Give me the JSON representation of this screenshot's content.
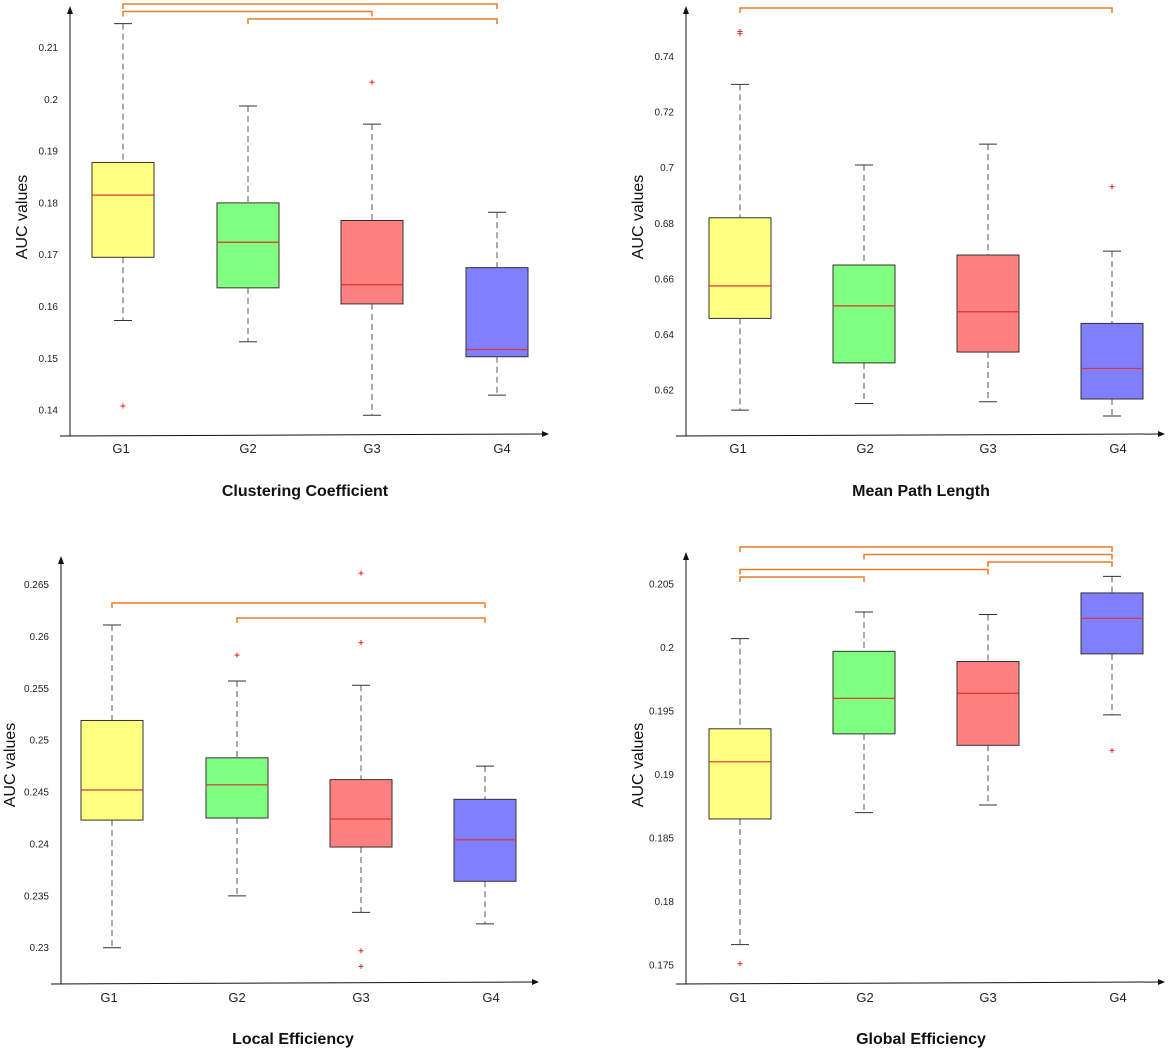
{
  "colors": {
    "groups": [
      "#ffff80",
      "#80ff80",
      "#ff8080",
      "#8080ff"
    ],
    "median": "#dd3333",
    "whisker": "#555555",
    "outlier": "#ee2222",
    "bracket": "#ee7a2a",
    "axis": "#111111"
  },
  "chart_data": [
    {
      "type": "box",
      "title": "Clustering Coefficient",
      "ylabel": "AUC values",
      "categories": [
        "G1",
        "G2",
        "G3",
        "G4"
      ],
      "ylim": [
        0.135,
        0.2155
      ],
      "yticks": [
        0.14,
        0.15,
        0.16,
        0.17,
        0.18,
        0.19,
        0.2,
        0.21
      ],
      "ytick_labels": [
        "0.14",
        "0.15",
        "0.16",
        "0.17",
        "0.18",
        "0.19",
        "0.2",
        "0.21"
      ],
      "boxes": [
        {
          "whisker_low": 0.1573,
          "q1": 0.1695,
          "median": 0.1815,
          "q3": 0.1878,
          "whisker_high": 0.2146,
          "outliers": [
            0.1408
          ]
        },
        {
          "whisker_low": 0.1532,
          "q1": 0.1636,
          "median": 0.1724,
          "q3": 0.18,
          "whisker_high": 0.1987,
          "outliers": []
        },
        {
          "whisker_low": 0.139,
          "q1": 0.1605,
          "median": 0.1642,
          "q3": 0.1766,
          "whisker_high": 0.1952,
          "outliers": [
            0.2033
          ]
        },
        {
          "whisker_low": 0.1429,
          "q1": 0.1503,
          "median": 0.1517,
          "q3": 0.1675,
          "whisker_high": 0.1782,
          "outliers": []
        }
      ],
      "brackets": [
        [
          0,
          3
        ],
        [
          0,
          2
        ],
        [
          1,
          3
        ]
      ]
    },
    {
      "type": "box",
      "title": "Mean Path Length",
      "ylabel": "AUC values",
      "categories": [
        "G1",
        "G2",
        "G3",
        "G4"
      ],
      "ylim": [
        0.6035,
        0.7535
      ],
      "yticks": [
        0.62,
        0.64,
        0.66,
        0.68,
        0.7,
        0.72,
        0.74
      ],
      "ytick_labels": [
        "0.62",
        "0.64",
        "0.66",
        "0.68",
        "0.7",
        "0.72",
        "0.74"
      ],
      "boxes": [
        {
          "whisker_low": 0.6128,
          "q1": 0.6458,
          "median": 0.6575,
          "q3": 0.682,
          "whisker_high": 0.73,
          "outliers": [
            0.7482,
            0.749
          ]
        },
        {
          "whisker_low": 0.6152,
          "q1": 0.6298,
          "median": 0.6503,
          "q3": 0.665,
          "whisker_high": 0.701,
          "outliers": []
        },
        {
          "whisker_low": 0.6158,
          "q1": 0.6337,
          "median": 0.6482,
          "q3": 0.6686,
          "whisker_high": 0.7085,
          "outliers": []
        },
        {
          "whisker_low": 0.6107,
          "q1": 0.6168,
          "median": 0.6278,
          "q3": 0.644,
          "whisker_high": 0.67,
          "outliers": [
            0.6932
          ]
        }
      ],
      "brackets": [
        [
          0,
          3
        ]
      ]
    },
    {
      "type": "box",
      "title": "Local Efficiency",
      "ylabel": "AUC values",
      "categories": [
        "G1",
        "G2",
        "G3",
        "G4"
      ],
      "ylim": [
        0.2265,
        0.2665
      ],
      "yticks": [
        0.23,
        0.235,
        0.24,
        0.245,
        0.25,
        0.255,
        0.26,
        0.265
      ],
      "ytick_labels": [
        "0.23",
        "0.235",
        "0.24",
        "0.245",
        "0.25",
        "0.255",
        "0.26",
        "0.265"
      ],
      "boxes": [
        {
          "whisker_low": 0.23,
          "q1": 0.2423,
          "median": 0.2452,
          "q3": 0.2519,
          "whisker_high": 0.2611,
          "outliers": []
        },
        {
          "whisker_low": 0.235,
          "q1": 0.2425,
          "median": 0.2457,
          "q3": 0.2483,
          "whisker_high": 0.2557,
          "outliers": [
            0.2582
          ]
        },
        {
          "whisker_low": 0.2334,
          "q1": 0.2397,
          "median": 0.2424,
          "q3": 0.2462,
          "whisker_high": 0.2553,
          "outliers": [
            0.2594,
            0.2661,
            0.2297,
            0.2282
          ]
        },
        {
          "whisker_low": 0.2323,
          "q1": 0.2364,
          "median": 0.2404,
          "q3": 0.2443,
          "whisker_high": 0.2475,
          "outliers": []
        }
      ],
      "brackets": [
        [
          0,
          3
        ],
        [
          1,
          3
        ]
      ]
    },
    {
      "type": "box",
      "title": "Global Efficiency",
      "ylabel": "AUC values",
      "categories": [
        "G1",
        "G2",
        "G3",
        "G4"
      ],
      "ylim": [
        0.1735,
        0.2065
      ],
      "yticks": [
        0.175,
        0.18,
        0.185,
        0.19,
        0.195,
        0.2,
        0.205
      ],
      "ytick_labels": [
        "0.175",
        "0.18",
        "0.185",
        "0.19",
        "0.195",
        "0.2",
        "0.205"
      ],
      "boxes": [
        {
          "whisker_low": 0.1766,
          "q1": 0.1865,
          "median": 0.191,
          "q3": 0.1936,
          "whisker_high": 0.2007,
          "outliers": [
            0.1751
          ]
        },
        {
          "whisker_low": 0.187,
          "q1": 0.1932,
          "median": 0.196,
          "q3": 0.1997,
          "whisker_high": 0.2028,
          "outliers": []
        },
        {
          "whisker_low": 0.1876,
          "q1": 0.1923,
          "median": 0.1964,
          "q3": 0.1989,
          "whisker_high": 0.2026,
          "outliers": []
        },
        {
          "whisker_low": 0.1947,
          "q1": 0.1995,
          "median": 0.2023,
          "q3": 0.2043,
          "whisker_high": 0.2056,
          "outliers": [
            0.1919
          ]
        }
      ],
      "brackets": [
        [
          0,
          3
        ],
        [
          1,
          3
        ],
        [
          2,
          3
        ],
        [
          0,
          2
        ],
        [
          0,
          1
        ]
      ]
    }
  ]
}
